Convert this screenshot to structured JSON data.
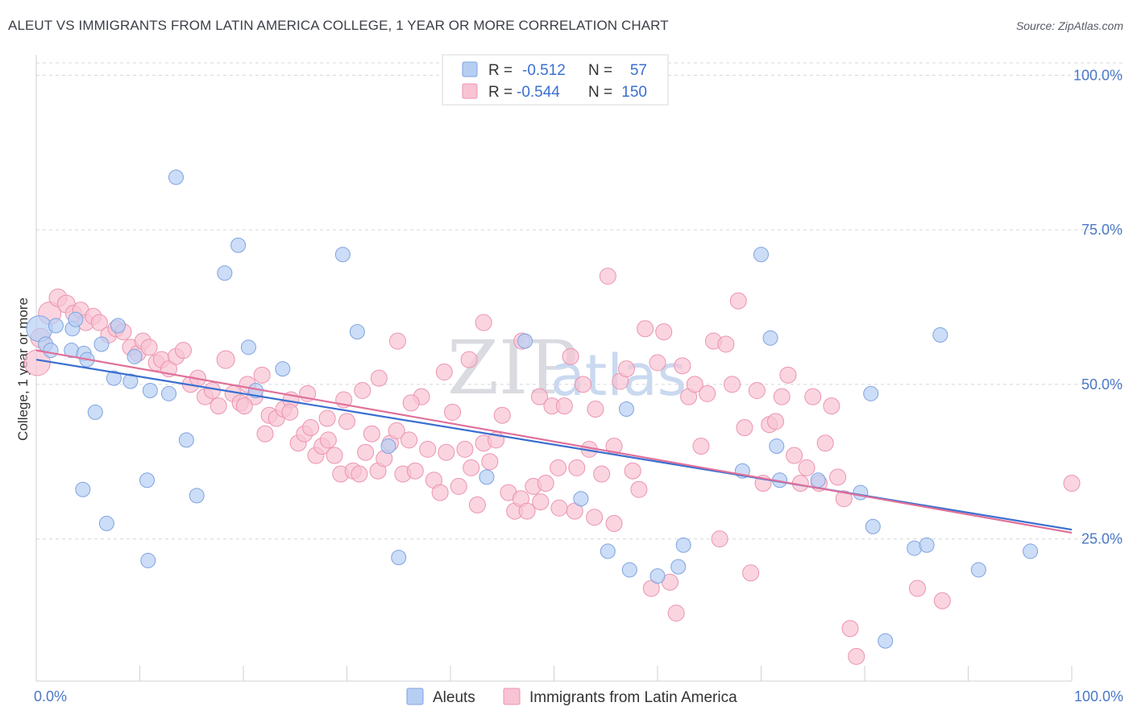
{
  "title": "ALEUT VS IMMIGRANTS FROM LATIN AMERICA COLLEGE, 1 YEAR OR MORE CORRELATION CHART",
  "source": "Source: ZipAtlas.com",
  "watermark": {
    "zip": "ZIP",
    "atlas": "atlas"
  },
  "colors": {
    "aleuts_fill": "#b7cef3",
    "aleuts_stroke": "#7fa3e0",
    "aleuts_line": "#3a6fd0",
    "latin_fill": "#f8c3d3",
    "latin_stroke": "#ec93b0",
    "latin_line": "#e0709a",
    "axis_text": "#4a78c8",
    "grid": "#d5d8dd"
  },
  "legend": {
    "rows": [
      {
        "r_label": "R =",
        "r_value": "-0.512",
        "n_label": "N =",
        "n_value": "57"
      },
      {
        "r_label": "R =",
        "r_value": "-0.544",
        "n_label": "N =",
        "n_value": "150"
      }
    ]
  },
  "bottom_legend": [
    "Aleuts",
    "Immigrants from Latin America"
  ],
  "chart_data": {
    "type": "scatter",
    "ylabel": "College, 1 year or more",
    "xlim": [
      0,
      100
    ],
    "ylim": [
      2,
      102
    ],
    "x_tick_labels": [
      "0.0%",
      "100.0%"
    ],
    "y_ticks": [
      {
        "value": 25,
        "label": "25.0%"
      },
      {
        "value": 50,
        "label": "50.0%"
      },
      {
        "value": 75,
        "label": "75.0%"
      },
      {
        "value": 100,
        "label": "100.0%"
      }
    ],
    "grid": "dashed horizontal",
    "series": [
      {
        "name": "Aleuts",
        "trend": [
          [
            0,
            54.0
          ],
          [
            100,
            26.5
          ]
        ],
        "points": [
          [
            0.3,
            59.0,
            16
          ],
          [
            0.9,
            56.5,
            9
          ],
          [
            1.4,
            55.5,
            9
          ],
          [
            1.9,
            59.5,
            9
          ],
          [
            3.5,
            59.0,
            9
          ],
          [
            3.4,
            55.5,
            9
          ],
          [
            4.6,
            55.0,
            9
          ],
          [
            3.8,
            60.5,
            9
          ],
          [
            4.9,
            54.0,
            9
          ],
          [
            6.3,
            56.5,
            9
          ],
          [
            7.5,
            51.0,
            9
          ],
          [
            7.9,
            59.5,
            9
          ],
          [
            9.1,
            50.5,
            9
          ],
          [
            9.5,
            54.5,
            9
          ],
          [
            11.0,
            49.0,
            9
          ],
          [
            12.8,
            48.5,
            9
          ],
          [
            13.5,
            83.5,
            9
          ],
          [
            14.5,
            41.0,
            9
          ],
          [
            18.2,
            68.0,
            9
          ],
          [
            19.5,
            72.5,
            9
          ],
          [
            20.5,
            56.0,
            9
          ],
          [
            21.2,
            49.0,
            9
          ],
          [
            5.7,
            45.5,
            9
          ],
          [
            4.5,
            33.0,
            9
          ],
          [
            6.8,
            27.5,
            9
          ],
          [
            10.7,
            34.5,
            9
          ],
          [
            10.8,
            21.5,
            9
          ],
          [
            15.5,
            32.0,
            9
          ],
          [
            23.8,
            52.5,
            9
          ],
          [
            29.6,
            71.0,
            9
          ],
          [
            31.0,
            58.5,
            9
          ],
          [
            34.0,
            40.0,
            9
          ],
          [
            35.0,
            22.0,
            9
          ],
          [
            43.5,
            35.0,
            9
          ],
          [
            47.2,
            57.0,
            9
          ],
          [
            52.6,
            31.5,
            9
          ],
          [
            55.2,
            23.0,
            9
          ],
          [
            57.0,
            46.0,
            9
          ],
          [
            57.3,
            20.0,
            9
          ],
          [
            60.0,
            19.0,
            9
          ],
          [
            62.0,
            20.5,
            9
          ],
          [
            62.5,
            24.0,
            9
          ],
          [
            68.2,
            36.0,
            9
          ],
          [
            70.0,
            71.0,
            9
          ],
          [
            70.9,
            57.5,
            9
          ],
          [
            71.5,
            40.0,
            9
          ],
          [
            71.8,
            34.5,
            9
          ],
          [
            75.5,
            34.5,
            9
          ],
          [
            79.6,
            32.5,
            9
          ],
          [
            80.6,
            48.5,
            9
          ],
          [
            80.8,
            27.0,
            9
          ],
          [
            84.8,
            23.5,
            9
          ],
          [
            86.0,
            24.0,
            9
          ],
          [
            87.3,
            58.0,
            9
          ],
          [
            91.0,
            20.0,
            9
          ],
          [
            96.0,
            23.0,
            9
          ],
          [
            82.0,
            8.5,
            9
          ]
        ]
      },
      {
        "name": "Immigrants from Latin America",
        "trend": [
          [
            0,
            55.5
          ],
          [
            100,
            26.0
          ]
        ],
        "points": [
          [
            0.1,
            53.5,
            16
          ],
          [
            0.4,
            57.5,
            12
          ],
          [
            1.3,
            61.5,
            14
          ],
          [
            2.1,
            64.0,
            11
          ],
          [
            2.9,
            63.0,
            11
          ],
          [
            3.6,
            61.5,
            10
          ],
          [
            4.3,
            62.0,
            10
          ],
          [
            4.8,
            60.0,
            10
          ],
          [
            5.5,
            61.0,
            10
          ],
          [
            6.1,
            60.0,
            10
          ],
          [
            7.0,
            58.0,
            10
          ],
          [
            7.7,
            59.0,
            10
          ],
          [
            8.4,
            58.5,
            10
          ],
          [
            9.1,
            56.0,
            10
          ],
          [
            9.8,
            55.0,
            10
          ],
          [
            10.3,
            57.0,
            10
          ],
          [
            10.9,
            56.0,
            10
          ],
          [
            11.6,
            53.5,
            10
          ],
          [
            12.1,
            54.0,
            10
          ],
          [
            12.8,
            52.5,
            10
          ],
          [
            13.5,
            54.5,
            10
          ],
          [
            14.2,
            55.5,
            10
          ],
          [
            14.9,
            50.0,
            10
          ],
          [
            15.6,
            51.0,
            10
          ],
          [
            16.3,
            48.0,
            10
          ],
          [
            17.0,
            49.0,
            10
          ],
          [
            17.6,
            46.5,
            10
          ],
          [
            18.3,
            54.0,
            11
          ],
          [
            19.0,
            48.5,
            10
          ],
          [
            19.7,
            47.0,
            10
          ],
          [
            20.4,
            50.0,
            10
          ],
          [
            21.1,
            48.0,
            10
          ],
          [
            21.8,
            51.5,
            10
          ],
          [
            22.5,
            45.0,
            10
          ],
          [
            23.2,
            44.5,
            10
          ],
          [
            23.9,
            46.0,
            10
          ],
          [
            24.6,
            47.5,
            10
          ],
          [
            25.3,
            40.5,
            10
          ],
          [
            25.9,
            42.0,
            10
          ],
          [
            26.5,
            43.0,
            10
          ],
          [
            27.0,
            38.5,
            10
          ],
          [
            27.6,
            40.0,
            10
          ],
          [
            28.2,
            41.0,
            10
          ],
          [
            28.8,
            38.5,
            10
          ],
          [
            29.4,
            35.5,
            10
          ],
          [
            30.0,
            44.0,
            10
          ],
          [
            30.6,
            36.0,
            10
          ],
          [
            31.2,
            35.5,
            10
          ],
          [
            31.8,
            39.0,
            10
          ],
          [
            32.4,
            42.0,
            10
          ],
          [
            33.0,
            36.0,
            10
          ],
          [
            33.6,
            38.0,
            10
          ],
          [
            34.2,
            40.5,
            10
          ],
          [
            34.8,
            42.5,
            10
          ],
          [
            35.4,
            35.5,
            10
          ],
          [
            36.0,
            41.0,
            10
          ],
          [
            36.6,
            36.0,
            10
          ],
          [
            37.2,
            48.0,
            10
          ],
          [
            37.8,
            39.5,
            10
          ],
          [
            38.4,
            34.5,
            10
          ],
          [
            39.0,
            32.5,
            10
          ],
          [
            39.6,
            39.0,
            10
          ],
          [
            40.2,
            45.5,
            10
          ],
          [
            40.8,
            33.5,
            10
          ],
          [
            41.4,
            39.5,
            10
          ],
          [
            42.0,
            36.5,
            10
          ],
          [
            42.6,
            30.5,
            10
          ],
          [
            43.2,
            40.5,
            10
          ],
          [
            43.8,
            37.5,
            10
          ],
          [
            44.4,
            41.0,
            10
          ],
          [
            45.0,
            45.0,
            10
          ],
          [
            45.6,
            32.5,
            10
          ],
          [
            46.2,
            29.5,
            10
          ],
          [
            46.8,
            31.5,
            10
          ],
          [
            47.4,
            29.5,
            10
          ],
          [
            48.0,
            33.5,
            10
          ],
          [
            48.6,
            48.0,
            10
          ],
          [
            49.2,
            34.0,
            10
          ],
          [
            49.8,
            46.5,
            10
          ],
          [
            50.4,
            36.5,
            10
          ],
          [
            51.0,
            46.5,
            10
          ],
          [
            51.6,
            54.5,
            10
          ],
          [
            52.2,
            36.5,
            10
          ],
          [
            52.8,
            50.0,
            10
          ],
          [
            53.4,
            39.5,
            10
          ],
          [
            54.0,
            46.0,
            10
          ],
          [
            54.6,
            35.5,
            10
          ],
          [
            55.2,
            67.5,
            10
          ],
          [
            55.8,
            40.0,
            10
          ],
          [
            56.4,
            50.5,
            10
          ],
          [
            57.0,
            52.5,
            10
          ],
          [
            57.6,
            36.0,
            10
          ],
          [
            58.2,
            33.0,
            10
          ],
          [
            58.8,
            59.0,
            10
          ],
          [
            59.4,
            17.0,
            10
          ],
          [
            60.0,
            53.5,
            10
          ],
          [
            60.6,
            58.5,
            10
          ],
          [
            61.2,
            18.0,
            10
          ],
          [
            61.8,
            13.0,
            10
          ],
          [
            62.4,
            53.0,
            10
          ],
          [
            63.0,
            48.0,
            10
          ],
          [
            63.6,
            50.0,
            10
          ],
          [
            64.2,
            40.0,
            10
          ],
          [
            64.8,
            48.5,
            10
          ],
          [
            65.4,
            57.0,
            10
          ],
          [
            66.0,
            25.0,
            10
          ],
          [
            66.6,
            56.5,
            10
          ],
          [
            67.2,
            50.0,
            10
          ],
          [
            67.8,
            63.5,
            10
          ],
          [
            68.4,
            43.0,
            10
          ],
          [
            69.0,
            19.5,
            10
          ],
          [
            69.6,
            49.0,
            10
          ],
          [
            70.2,
            34.0,
            10
          ],
          [
            70.8,
            43.5,
            10
          ],
          [
            71.4,
            44.0,
            10
          ],
          [
            72.0,
            48.0,
            10
          ],
          [
            72.6,
            51.5,
            10
          ],
          [
            73.2,
            38.5,
            10
          ],
          [
            73.8,
            34.0,
            10
          ],
          [
            74.4,
            36.5,
            10
          ],
          [
            75.0,
            48.0,
            10
          ],
          [
            75.6,
            34.0,
            10
          ],
          [
            76.2,
            40.5,
            10
          ],
          [
            76.8,
            46.5,
            10
          ],
          [
            77.4,
            35.0,
            10
          ],
          [
            78.0,
            31.5,
            10
          ],
          [
            78.6,
            10.5,
            10
          ],
          [
            79.2,
            6.0,
            10
          ],
          [
            46.9,
            57.0,
            10
          ],
          [
            43.2,
            60.0,
            10
          ],
          [
            41.8,
            54.0,
            10
          ],
          [
            39.4,
            52.0,
            10
          ],
          [
            36.2,
            47.0,
            10
          ],
          [
            34.9,
            57.0,
            10
          ],
          [
            33.1,
            51.0,
            10
          ],
          [
            31.5,
            49.0,
            10
          ],
          [
            29.7,
            47.5,
            10
          ],
          [
            28.1,
            44.5,
            10
          ],
          [
            26.2,
            48.5,
            10
          ],
          [
            24.5,
            45.5,
            10
          ],
          [
            22.1,
            42.0,
            10
          ],
          [
            20.1,
            46.5,
            10
          ],
          [
            85.1,
            17.0,
            10
          ],
          [
            87.5,
            15.0,
            10
          ],
          [
            100.0,
            34.0,
            10
          ],
          [
            55.8,
            27.5,
            10
          ],
          [
            53.9,
            28.5,
            10
          ],
          [
            52.0,
            29.5,
            10
          ],
          [
            50.5,
            30.0,
            10
          ],
          [
            48.7,
            31.0,
            10
          ]
        ]
      }
    ]
  }
}
